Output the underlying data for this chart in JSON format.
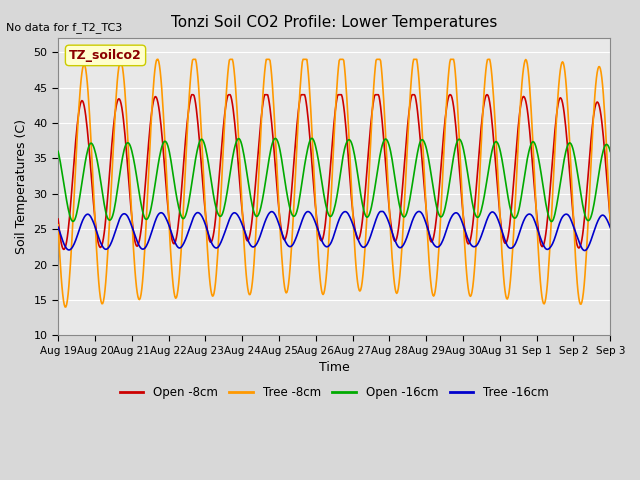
{
  "title": "Tonzi Soil CO2 Profile: Lower Temperatures",
  "no_data_text": "No data for f_T2_TC3",
  "ylabel": "Soil Temperatures (C)",
  "xlabel": "Time",
  "annotation": "TZ_soilco2",
  "ylim": [
    10,
    52
  ],
  "yticks": [
    10,
    15,
    20,
    25,
    30,
    35,
    40,
    45,
    50
  ],
  "x_labels": [
    "Aug 19",
    "Aug 20",
    "Aug 21",
    "Aug 22",
    "Aug 23",
    "Aug 24",
    "Aug 25",
    "Aug 26",
    "Aug 27",
    "Aug 28",
    "Aug 29",
    "Aug 30",
    "Aug 31",
    "Sep 1",
    "Sep 2",
    "Sep 3"
  ],
  "series": {
    "open_8cm": {
      "color": "#cc0000",
      "label": "Open -8cm",
      "base_min": 22,
      "base_max": 43,
      "phase_shift": 0.0
    },
    "tree_8cm": {
      "color": "#ff9900",
      "label": "Tree -8cm",
      "base_min": 14,
      "base_max": 48,
      "phase_shift": 0.05
    },
    "open_16cm": {
      "color": "#00aa00",
      "label": "Open -16cm",
      "base_min": 26,
      "base_max": 37,
      "phase_shift": 0.25
    },
    "tree_16cm": {
      "color": "#0000cc",
      "label": "Tree -16cm",
      "base_min": 22,
      "base_max": 27,
      "phase_shift": 0.15
    }
  },
  "n_days": 15,
  "points_per_day": 48
}
